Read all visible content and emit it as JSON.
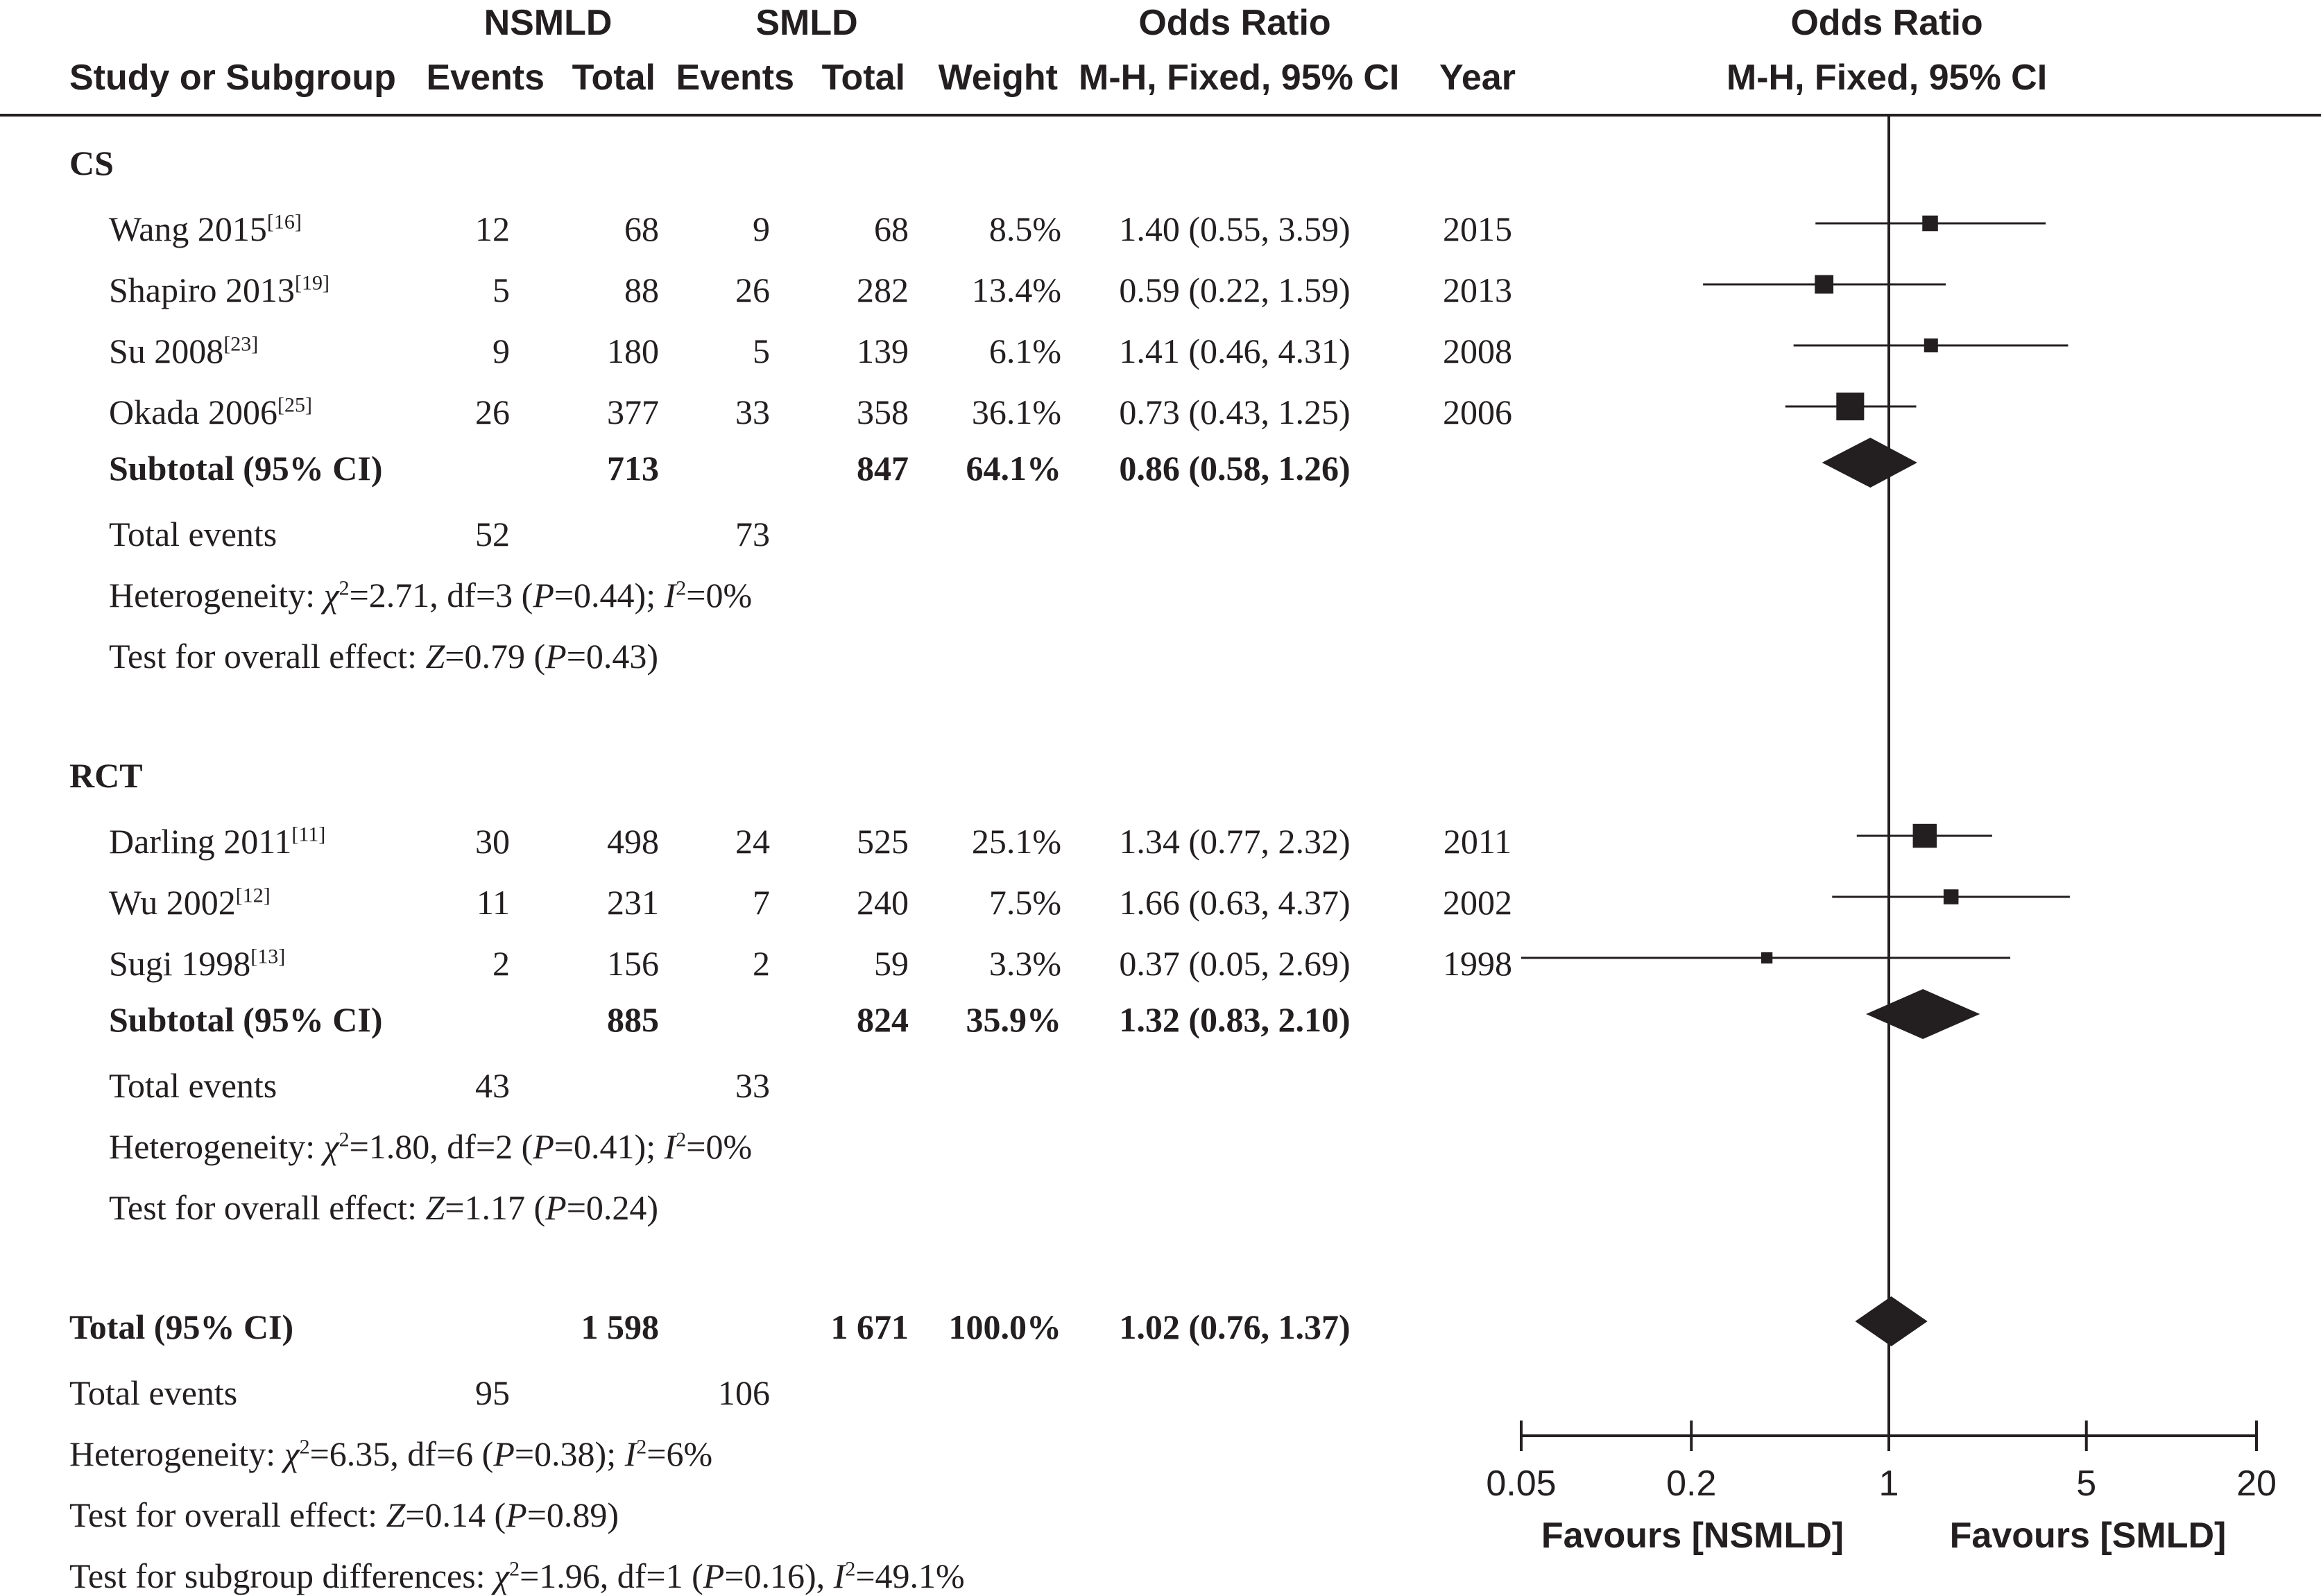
{
  "header": {
    "group_a": "NSMLD",
    "group_b": "SMLD",
    "study_col": "Study or Subgroup",
    "events_col": "Events",
    "total_col": "Total",
    "weight_col": "Weight",
    "or_title": "Odds Ratio",
    "or_method": "M-H, Fixed, 95% CI",
    "year_col": "Year",
    "plot_title": "Odds Ratio",
    "plot_method": "M-H, Fixed, 95% CI"
  },
  "subgroups": [
    {
      "label": "CS",
      "studies": [
        {
          "name": "Wang 2015",
          "ref": "[16]",
          "e1": "12",
          "t1": "68",
          "e2": "9",
          "t2": "68",
          "weight": "8.5%",
          "ci": "1.40 (0.55, 3.59)",
          "year": "2015"
        },
        {
          "name": "Shapiro 2013",
          "ref": "[19]",
          "e1": "5",
          "t1": "88",
          "e2": "26",
          "t2": "282",
          "weight": "13.4%",
          "ci": "0.59 (0.22, 1.59)",
          "year": "2013"
        },
        {
          "name": "Su 2008",
          "ref": "[23]",
          "e1": "9",
          "t1": "180",
          "e2": "5",
          "t2": "139",
          "weight": "6.1%",
          "ci": "1.41 (0.46, 4.31)",
          "year": "2008"
        },
        {
          "name": "Okada 2006",
          "ref": "[25]",
          "e1": "26",
          "t1": "377",
          "e2": "33",
          "t2": "358",
          "weight": "36.1%",
          "ci": "0.73 (0.43, 1.25)",
          "year": "2006"
        }
      ],
      "subtotal": {
        "label": "Subtotal (95% CI)",
        "t1": "713",
        "t2": "847",
        "weight": "64.1%",
        "ci": "0.86 (0.58, 1.26)"
      },
      "total_events": {
        "label": "Total events",
        "e1": "52",
        "e2": "73"
      },
      "heterogeneity": {
        "prefix": "Heterogeneity: ",
        "chi_sym": "χ",
        "chi_sup": "2",
        "chi_rest": "=2.71, df=3 (",
        "p_sym": "P",
        "p_rest": "=0.44); ",
        "i_sym": "I",
        "i_sup": "2",
        "i_rest": "=0%"
      },
      "overall": {
        "prefix": "Test for overall effect: ",
        "z_sym": "Z",
        "z_rest": "=0.79 (",
        "p_sym": "P",
        "p_rest": "=0.43)"
      }
    },
    {
      "label": "RCT",
      "studies": [
        {
          "name": "Darling 2011",
          "ref": "[11]",
          "e1": "30",
          "t1": "498",
          "e2": "24",
          "t2": "525",
          "weight": "25.1%",
          "ci": "1.34 (0.77, 2.32)",
          "year": "2011"
        },
        {
          "name": "Wu 2002",
          "ref": "[12]",
          "e1": "11",
          "t1": "231",
          "e2": "7",
          "t2": "240",
          "weight": "7.5%",
          "ci": "1.66 (0.63, 4.37)",
          "year": "2002"
        },
        {
          "name": "Sugi 1998",
          "ref": "[13]",
          "e1": "2",
          "t1": "156",
          "e2": "2",
          "t2": "59",
          "weight": "3.3%",
          "ci": "0.37 (0.05, 2.69)",
          "year": "1998"
        }
      ],
      "subtotal": {
        "label": "Subtotal (95% CI)",
        "t1": "885",
        "t2": "824",
        "weight": "35.9%",
        "ci": "1.32 (0.83, 2.10)"
      },
      "total_events": {
        "label": "Total events",
        "e1": "43",
        "e2": "33"
      },
      "heterogeneity": {
        "prefix": "Heterogeneity: ",
        "chi_sym": "χ",
        "chi_sup": "2",
        "chi_rest": "=1.80, df=2 (",
        "p_sym": "P",
        "p_rest": "=0.41); ",
        "i_sym": "I",
        "i_sup": "2",
        "i_rest": "=0%"
      },
      "overall": {
        "prefix": "Test for overall effect: ",
        "z_sym": "Z",
        "z_rest": "=1.17 (",
        "p_sym": "P",
        "p_rest": "=0.24)"
      }
    }
  ],
  "total": {
    "label": "Total (95% CI)",
    "t1": "1 598",
    "t2": "1 671",
    "weight": "100.0%",
    "ci": "1.02 (0.76, 1.37)"
  },
  "total_events": {
    "label": "Total events",
    "e1": "95",
    "e2": "106"
  },
  "total_heterogeneity": {
    "prefix": "Heterogeneity: ",
    "chi_sym": "χ",
    "chi_sup": "2",
    "chi_rest": "=6.35, df=6 (",
    "p_sym": "P",
    "p_rest": "=0.38); ",
    "i_sym": "I",
    "i_sup": "2",
    "i_rest": "=6%"
  },
  "total_overall": {
    "prefix": "Test for overall effect: ",
    "z_sym": "Z",
    "z_rest": "=0.14 (",
    "p_sym": "P",
    "p_rest": "=0.89)"
  },
  "subgroup_diff": {
    "prefix": "Test for subgroup differences: ",
    "chi_sym": "χ",
    "chi_sup": "2",
    "chi_rest": "=1.96, df=1 (",
    "p_sym": "P",
    "p_rest": "=0.16), ",
    "i_sym": "I",
    "i_sup": "2",
    "i_rest": "=49.1%"
  },
  "axis": {
    "favours_left": "Favours [NSMLD]",
    "favours_right": "Favours [SMLD]"
  },
  "chart_data": {
    "type": "forest",
    "x_scale": "log",
    "xlim": [
      0.05,
      20
    ],
    "x_ticks": [
      {
        "value": 0.05,
        "label": "0.05"
      },
      {
        "value": 0.2,
        "label": "0.2"
      },
      {
        "value": 1,
        "label": "1"
      },
      {
        "value": 5,
        "label": "5"
      },
      {
        "value": 20,
        "label": "20"
      }
    ],
    "reference_line": 1,
    "studies": [
      {
        "name": "Wang 2015",
        "or": 1.4,
        "lo": 0.55,
        "hi": 3.59,
        "weight": 8.5
      },
      {
        "name": "Shapiro 2013",
        "or": 0.59,
        "lo": 0.22,
        "hi": 1.59,
        "weight": 13.4
      },
      {
        "name": "Su 2008",
        "or": 1.41,
        "lo": 0.46,
        "hi": 4.31,
        "weight": 6.1
      },
      {
        "name": "Okada 2006",
        "or": 0.73,
        "lo": 0.43,
        "hi": 1.25,
        "weight": 36.1
      },
      {
        "name": "Darling 2011",
        "or": 1.34,
        "lo": 0.77,
        "hi": 2.32,
        "weight": 25.1
      },
      {
        "name": "Wu 2002",
        "or": 1.66,
        "lo": 0.63,
        "hi": 4.37,
        "weight": 7.5
      },
      {
        "name": "Sugi 1998",
        "or": 0.37,
        "lo": 0.05,
        "hi": 2.69,
        "weight": 3.3
      }
    ],
    "summaries": [
      {
        "name": "Subtotal CS",
        "or": 0.86,
        "lo": 0.58,
        "hi": 1.26
      },
      {
        "name": "Subtotal RCT",
        "or": 1.32,
        "lo": 0.83,
        "hi": 2.1
      },
      {
        "name": "Total",
        "or": 1.02,
        "lo": 0.76,
        "hi": 1.37
      }
    ]
  }
}
